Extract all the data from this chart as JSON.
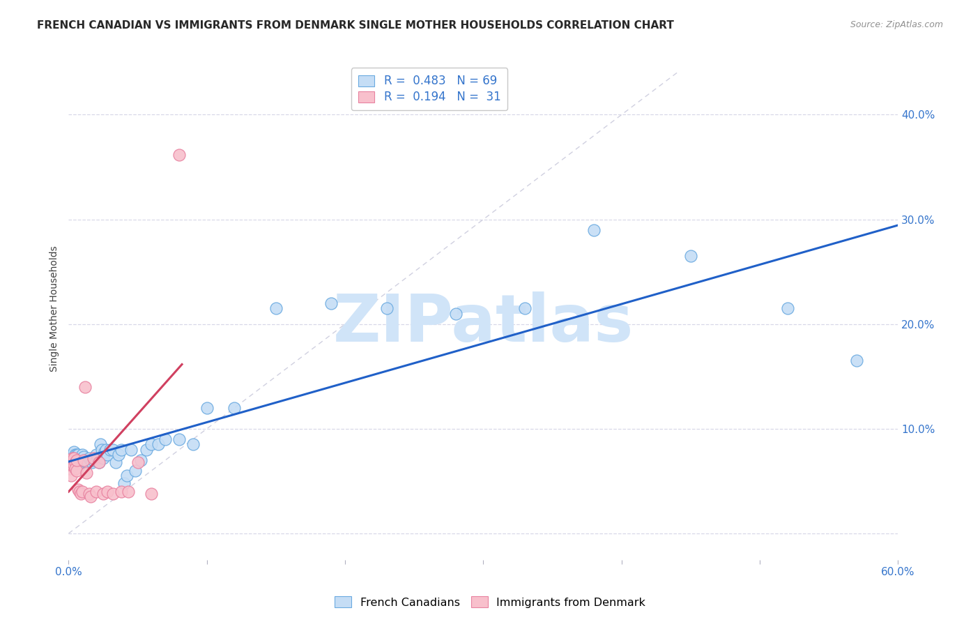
{
  "title": "FRENCH CANADIAN VS IMMIGRANTS FROM DENMARK SINGLE MOTHER HOUSEHOLDS CORRELATION CHART",
  "source": "Source: ZipAtlas.com",
  "ylabel": "Single Mother Households",
  "xlim": [
    0.0,
    0.6
  ],
  "ylim": [
    -0.025,
    0.455
  ],
  "yticks": [
    0.0,
    0.1,
    0.2,
    0.3,
    0.4
  ],
  "ytick_labels": [
    "",
    "10.0%",
    "20.0%",
    "30.0%",
    "40.0%"
  ],
  "xticks": [
    0.0,
    0.1,
    0.2,
    0.3,
    0.4,
    0.5,
    0.6
  ],
  "xtick_labels": [
    "0.0%",
    "",
    "",
    "",
    "",
    "",
    "60.0%"
  ],
  "blue_R": 0.483,
  "blue_N": 69,
  "pink_R": 0.194,
  "pink_N": 31,
  "blue_face": "#c5ddf5",
  "blue_edge": "#6aaae0",
  "pink_face": "#f8c0cc",
  "pink_edge": "#e882a0",
  "blue_line": "#2060c8",
  "pink_line": "#d04060",
  "ref_line": "#d0d0e0",
  "watermark_color": "#d0e4f8",
  "title_fontsize": 11,
  "source_fontsize": 9,
  "tick_fontsize": 11,
  "legend_fontsize": 12,
  "ylabel_fontsize": 10,
  "blue_x": [
    0.001,
    0.002,
    0.002,
    0.003,
    0.003,
    0.003,
    0.004,
    0.004,
    0.004,
    0.005,
    0.005,
    0.005,
    0.005,
    0.006,
    0.006,
    0.006,
    0.007,
    0.007,
    0.008,
    0.008,
    0.009,
    0.009,
    0.01,
    0.01,
    0.011,
    0.012,
    0.013,
    0.014,
    0.015,
    0.016,
    0.017,
    0.018,
    0.019,
    0.02,
    0.021,
    0.022,
    0.023,
    0.024,
    0.025,
    0.026,
    0.027,
    0.028,
    0.03,
    0.032,
    0.034,
    0.036,
    0.038,
    0.04,
    0.042,
    0.045,
    0.048,
    0.052,
    0.056,
    0.06,
    0.065,
    0.07,
    0.08,
    0.09,
    0.1,
    0.12,
    0.15,
    0.19,
    0.23,
    0.28,
    0.33,
    0.38,
    0.45,
    0.52,
    0.57
  ],
  "blue_y": [
    0.068,
    0.063,
    0.072,
    0.065,
    0.07,
    0.075,
    0.068,
    0.073,
    0.078,
    0.068,
    0.073,
    0.075,
    0.07,
    0.075,
    0.068,
    0.072,
    0.068,
    0.075,
    0.065,
    0.07,
    0.068,
    0.072,
    0.075,
    0.068,
    0.073,
    0.07,
    0.068,
    0.068,
    0.072,
    0.07,
    0.068,
    0.07,
    0.072,
    0.075,
    0.072,
    0.068,
    0.085,
    0.08,
    0.072,
    0.078,
    0.08,
    0.075,
    0.08,
    0.08,
    0.068,
    0.075,
    0.08,
    0.048,
    0.055,
    0.08,
    0.06,
    0.07,
    0.08,
    0.085,
    0.085,
    0.09,
    0.09,
    0.085,
    0.12,
    0.12,
    0.215,
    0.22,
    0.215,
    0.21,
    0.215,
    0.29,
    0.265,
    0.215,
    0.165
  ],
  "pink_x": [
    0.001,
    0.002,
    0.002,
    0.003,
    0.003,
    0.004,
    0.004,
    0.005,
    0.005,
    0.006,
    0.006,
    0.007,
    0.008,
    0.009,
    0.01,
    0.011,
    0.012,
    0.013,
    0.015,
    0.016,
    0.018,
    0.02,
    0.022,
    0.025,
    0.028,
    0.032,
    0.038,
    0.043,
    0.05,
    0.06,
    0.08
  ],
  "pink_y": [
    0.062,
    0.068,
    0.055,
    0.065,
    0.072,
    0.065,
    0.072,
    0.068,
    0.062,
    0.06,
    0.07,
    0.042,
    0.04,
    0.038,
    0.04,
    0.07,
    0.14,
    0.058,
    0.038,
    0.035,
    0.072,
    0.04,
    0.068,
    0.038,
    0.04,
    0.038,
    0.04,
    0.04,
    0.068,
    0.038,
    0.362
  ]
}
